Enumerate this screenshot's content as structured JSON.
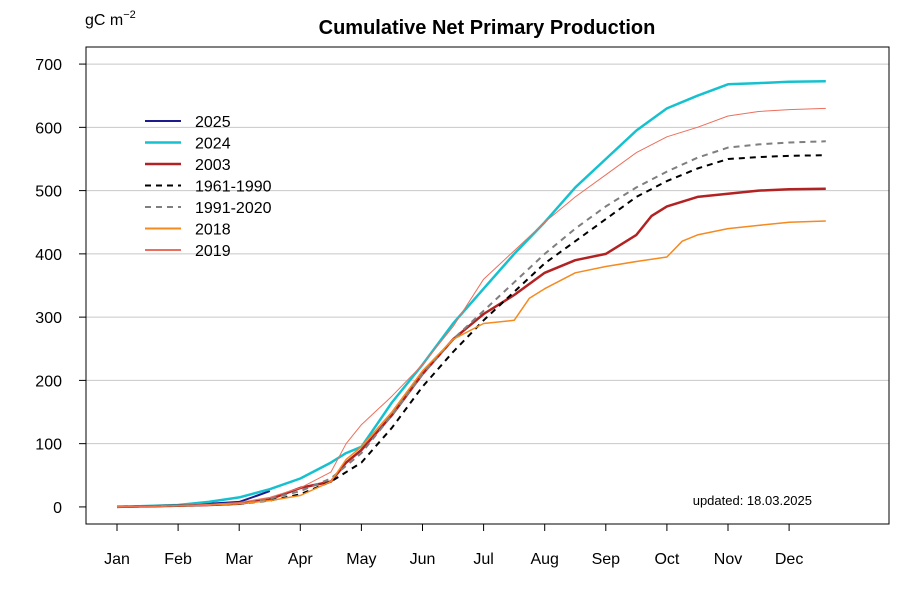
{
  "chart_data": {
    "type": "line",
    "title": "Cumulative Net Primary Production",
    "yunit": {
      "base": "gC m",
      "exp": "−2"
    },
    "note": "updated: 18.03.2025",
    "xlim": [
      0,
      12.2
    ],
    "ylim": [
      -27,
      727
    ],
    "month_ticks": [
      {
        "x": 0,
        "label": "Jan"
      },
      {
        "x": 1,
        "label": "Feb"
      },
      {
        "x": 2,
        "label": "Mar"
      },
      {
        "x": 3,
        "label": "Apr"
      },
      {
        "x": 4,
        "label": "May"
      },
      {
        "x": 5,
        "label": "Jun"
      },
      {
        "x": 6,
        "label": "Jul"
      },
      {
        "x": 7,
        "label": "Aug"
      },
      {
        "x": 8,
        "label": "Sep"
      },
      {
        "x": 9,
        "label": "Oct"
      },
      {
        "x": 10,
        "label": "Nov"
      },
      {
        "x": 11,
        "label": "Dec"
      }
    ],
    "y_ticks": [
      0,
      100,
      200,
      300,
      400,
      500,
      600,
      700
    ],
    "grid": true,
    "legend_position": "top-left",
    "series": [
      {
        "name": "2025",
        "color": "#1b1b8c",
        "width": 2,
        "dash": "",
        "points": [
          [
            0,
            0
          ],
          [
            1,
            2
          ],
          [
            1.5,
            5
          ],
          [
            2,
            8
          ],
          [
            2.3,
            18
          ],
          [
            2.5,
            25
          ]
        ]
      },
      {
        "name": "2024",
        "color": "#16c1cf",
        "width": 2.5,
        "dash": "",
        "points": [
          [
            0,
            0
          ],
          [
            1,
            3
          ],
          [
            1.5,
            8
          ],
          [
            2,
            15
          ],
          [
            2.5,
            28
          ],
          [
            3,
            45
          ],
          [
            3.5,
            70
          ],
          [
            3.75,
            85
          ],
          [
            4,
            95
          ],
          [
            4.25,
            130
          ],
          [
            4.5,
            165
          ],
          [
            5,
            225
          ],
          [
            5.5,
            290
          ],
          [
            6,
            345
          ],
          [
            6.5,
            400
          ],
          [
            7,
            450
          ],
          [
            7.5,
            505
          ],
          [
            8,
            550
          ],
          [
            8.5,
            595
          ],
          [
            9,
            630
          ],
          [
            9.5,
            650
          ],
          [
            10,
            668
          ],
          [
            10.5,
            670
          ],
          [
            11,
            672
          ],
          [
            11.6,
            673
          ]
        ]
      },
      {
        "name": "2003",
        "color": "#b22222",
        "width": 2.5,
        "dash": "",
        "points": [
          [
            0,
            0
          ],
          [
            1,
            2
          ],
          [
            1.5,
            3
          ],
          [
            2,
            5
          ],
          [
            2.5,
            12
          ],
          [
            3,
            30
          ],
          [
            3.5,
            40
          ],
          [
            3.75,
            70
          ],
          [
            4,
            90
          ],
          [
            4.5,
            145
          ],
          [
            5,
            210
          ],
          [
            5.5,
            265
          ],
          [
            6,
            305
          ],
          [
            6.5,
            335
          ],
          [
            7,
            370
          ],
          [
            7.5,
            390
          ],
          [
            8,
            400
          ],
          [
            8.5,
            430
          ],
          [
            8.75,
            460
          ],
          [
            9,
            475
          ],
          [
            9.5,
            490
          ],
          [
            10,
            495
          ],
          [
            10.5,
            500
          ],
          [
            11,
            502
          ],
          [
            11.6,
            503
          ]
        ]
      },
      {
        "name": "1961-1990",
        "color": "#000000",
        "width": 2,
        "dash": "6,5",
        "points": [
          [
            0,
            0
          ],
          [
            1,
            2
          ],
          [
            1.5,
            3
          ],
          [
            2,
            5
          ],
          [
            2.5,
            10
          ],
          [
            3,
            20
          ],
          [
            3.5,
            40
          ],
          [
            4,
            70
          ],
          [
            4.5,
            125
          ],
          [
            5,
            190
          ],
          [
            5.5,
            245
          ],
          [
            6,
            295
          ],
          [
            6.5,
            340
          ],
          [
            7,
            385
          ],
          [
            7.5,
            420
          ],
          [
            8,
            455
          ],
          [
            8.5,
            490
          ],
          [
            9,
            515
          ],
          [
            9.5,
            535
          ],
          [
            10,
            550
          ],
          [
            10.5,
            553
          ],
          [
            11,
            555
          ],
          [
            11.6,
            556
          ]
        ]
      },
      {
        "name": "1991-2020",
        "color": "#7f7f7f",
        "width": 2,
        "dash": "6,5",
        "points": [
          [
            0,
            0
          ],
          [
            1,
            2
          ],
          [
            1.5,
            3
          ],
          [
            2,
            6
          ],
          [
            2.5,
            13
          ],
          [
            3,
            25
          ],
          [
            3.5,
            45
          ],
          [
            4,
            85
          ],
          [
            4.5,
            145
          ],
          [
            5,
            210
          ],
          [
            5.5,
            265
          ],
          [
            6,
            310
          ],
          [
            6.5,
            355
          ],
          [
            7,
            400
          ],
          [
            7.5,
            440
          ],
          [
            8,
            475
          ],
          [
            8.5,
            505
          ],
          [
            9,
            530
          ],
          [
            9.5,
            552
          ],
          [
            10,
            568
          ],
          [
            10.5,
            573
          ],
          [
            11,
            576
          ],
          [
            11.6,
            578
          ]
        ]
      },
      {
        "name": "2018",
        "color": "#f58a1f",
        "width": 1.5,
        "dash": "",
        "points": [
          [
            0,
            0
          ],
          [
            1,
            2
          ],
          [
            1.5,
            3
          ],
          [
            2,
            5
          ],
          [
            2.5,
            10
          ],
          [
            3,
            18
          ],
          [
            3.5,
            40
          ],
          [
            3.75,
            75
          ],
          [
            4,
            95
          ],
          [
            4.5,
            150
          ],
          [
            5,
            215
          ],
          [
            5.5,
            265
          ],
          [
            6,
            290
          ],
          [
            6.5,
            295
          ],
          [
            6.75,
            330
          ],
          [
            7,
            345
          ],
          [
            7.5,
            370
          ],
          [
            8,
            380
          ],
          [
            8.5,
            388
          ],
          [
            9,
            395
          ],
          [
            9.25,
            420
          ],
          [
            9.5,
            430
          ],
          [
            10,
            440
          ],
          [
            10.5,
            445
          ],
          [
            11,
            450
          ],
          [
            11.6,
            452
          ]
        ]
      },
      {
        "name": "2019",
        "color": "#ec6f5d",
        "width": 1,
        "dash": "",
        "points": [
          [
            0,
            0
          ],
          [
            1,
            2
          ],
          [
            1.5,
            4
          ],
          [
            2,
            7
          ],
          [
            2.5,
            15
          ],
          [
            3,
            30
          ],
          [
            3.5,
            55
          ],
          [
            3.75,
            100
          ],
          [
            4,
            130
          ],
          [
            4.5,
            175
          ],
          [
            5,
            225
          ],
          [
            5.5,
            285
          ],
          [
            6,
            360
          ],
          [
            6.5,
            405
          ],
          [
            7,
            450
          ],
          [
            7.5,
            490
          ],
          [
            8,
            525
          ],
          [
            8.5,
            560
          ],
          [
            9,
            585
          ],
          [
            9.5,
            600
          ],
          [
            10,
            618
          ],
          [
            10.5,
            625
          ],
          [
            11,
            628
          ],
          [
            11.6,
            630
          ]
        ]
      }
    ]
  }
}
